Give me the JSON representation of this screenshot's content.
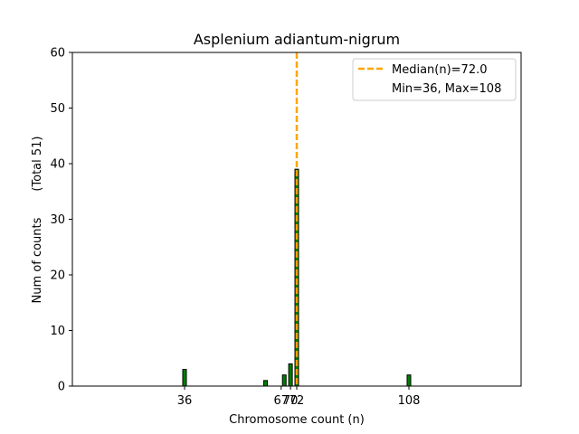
{
  "chart_data": {
    "type": "bar",
    "title": "Asplenium adiantum-nigrum",
    "xlabel": "Chromosome count (n)",
    "ylabel": "Num of counts       (Total 51)",
    "xlim": [
      0,
      144
    ],
    "ylim": [
      0,
      60
    ],
    "x_ticks": [
      36,
      67,
      70,
      72,
      108
    ],
    "y_ticks": [
      0,
      10,
      20,
      30,
      40,
      50,
      60
    ],
    "bars": [
      {
        "x": 36,
        "count": 3
      },
      {
        "x": 62,
        "count": 1
      },
      {
        "x": 68,
        "count": 2
      },
      {
        "x": 70,
        "count": 4
      },
      {
        "x": 72,
        "count": 39
      },
      {
        "x": 108,
        "count": 2
      }
    ],
    "median": 72.0,
    "legend": {
      "placement": "top-right",
      "median_label": "Median(n)=72.0",
      "range_label": "Min=36, Max=108"
    },
    "colors": {
      "bar_fill": "#008000",
      "bar_edge": "#000000",
      "median_line": "#FFA500"
    }
  }
}
